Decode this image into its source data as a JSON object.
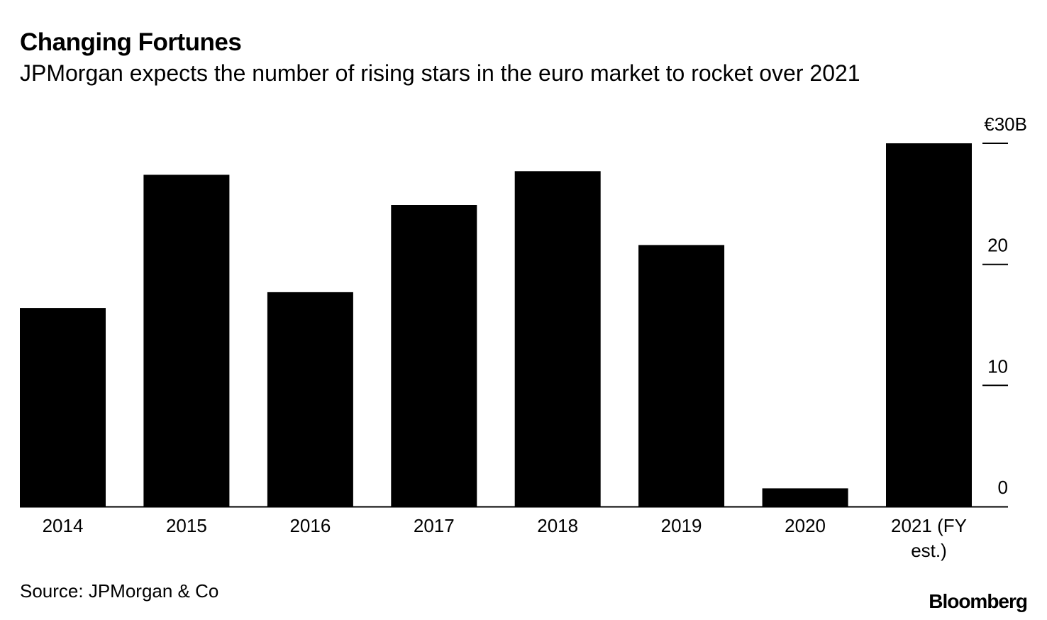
{
  "header": {
    "title": "Changing Fortunes",
    "subtitle": "JPMorgan expects the number of rising stars in the euro market to rocket over 2021"
  },
  "footer": {
    "source": "Source: JPMorgan & Co",
    "brand": "Bloomberg"
  },
  "colors": {
    "bar": "#000000",
    "axis": "#000000",
    "background": "#ffffff"
  },
  "chart_data": {
    "type": "bar",
    "title": "Changing Fortunes",
    "subtitle": "JPMorgan expects the number of rising stars in the euro market to rocket over 2021",
    "categories": [
      "2014",
      "2015",
      "2016",
      "2017",
      "2018",
      "2019",
      "2020",
      "2021 (FY est.)"
    ],
    "category_label_lines": [
      [
        "2014"
      ],
      [
        "2015"
      ],
      [
        "2016"
      ],
      [
        "2017"
      ],
      [
        "2018"
      ],
      [
        "2019"
      ],
      [
        "2020"
      ],
      [
        "2021 (FY",
        "est.)"
      ]
    ],
    "values": [
      16.4,
      27.4,
      17.7,
      24.9,
      27.7,
      21.6,
      1.5,
      30.0
    ],
    "unit": "EUR billions",
    "ylim": [
      0,
      30
    ],
    "yticks": [
      0,
      10,
      20,
      30
    ],
    "ytick_labels": [
      "0",
      "10",
      "20",
      "€30B"
    ],
    "y_axis_side": "right",
    "grid": false,
    "xlabel": "",
    "ylabel": ""
  }
}
